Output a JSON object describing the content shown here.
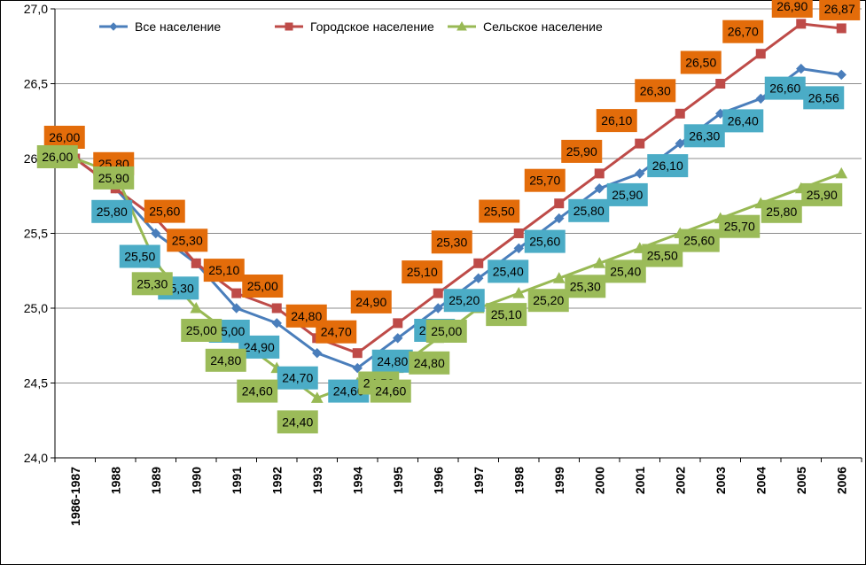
{
  "chart_data": {
    "type": "line",
    "categories": [
      "1986-1987",
      "1988",
      "1989",
      "1990",
      "1991",
      "1992",
      "1993",
      "1994",
      "1995",
      "1996",
      "1997",
      "1998",
      "1999",
      "2000",
      "2001",
      "2002",
      "2003",
      "2004",
      "2005",
      "2006"
    ],
    "ylim": [
      24.0,
      27.0
    ],
    "yticks": [
      "24,0",
      "24,5",
      "25,0",
      "25,5",
      "26,0",
      "26,5",
      "27,0"
    ],
    "legend_position": "top",
    "grid": "horizontal",
    "series": [
      {
        "name": "Все население",
        "color": "#4a7ebb",
        "marker": "diamond",
        "label_bg": "#4bacc6",
        "values": [
          26.0,
          25.8,
          25.5,
          25.3,
          25.0,
          24.9,
          24.7,
          24.6,
          24.8,
          25.0,
          25.2,
          25.4,
          25.6,
          25.8,
          25.9,
          26.1,
          26.3,
          26.4,
          26.6,
          26.56
        ],
        "labels": [
          "",
          "25,80",
          "25,50",
          "25,30",
          "25,00",
          "24,90",
          "24,70",
          "24,60",
          "24,80",
          "25,00",
          "25,20",
          "25,40",
          "25,60",
          "25,80",
          "25,90",
          "26,10",
          "26,30",
          "26,40",
          "26,60",
          "26,56"
        ]
      },
      {
        "name": "Городское население",
        "color": "#be4b48",
        "marker": "square",
        "label_bg": "#e36c0a",
        "values": [
          26.0,
          25.8,
          25.6,
          25.3,
          25.1,
          25.0,
          24.8,
          24.7,
          24.9,
          25.1,
          25.3,
          25.5,
          25.7,
          25.9,
          26.1,
          26.3,
          26.5,
          26.7,
          26.9,
          26.87
        ],
        "labels": [
          "26,00",
          "25,80",
          "25,60",
          "25,30",
          "25,10",
          "25,00",
          "24,80",
          "24,70",
          "24,90",
          "25,10",
          "25,30",
          "25,50",
          "25,70",
          "25,90",
          "26,10",
          "26,30",
          "26,50",
          "26,70",
          "26,90",
          "26,87"
        ]
      },
      {
        "name": "Сельское население",
        "color": "#98b954",
        "marker": "triangle",
        "label_bg": "#9bbb59",
        "values": [
          26.0,
          25.9,
          25.3,
          25.0,
          24.8,
          24.6,
          24.4,
          24.5,
          24.6,
          24.8,
          25.0,
          25.1,
          25.2,
          25.3,
          25.4,
          25.5,
          25.6,
          25.7,
          25.8,
          25.9
        ],
        "labels": [
          "26,00",
          "25,90",
          "25,30",
          "25,00",
          "24,80",
          "24,60",
          "24,40",
          "24,50",
          "24,60",
          "24,80",
          "25,00",
          "25,10",
          "25,20",
          "25,30",
          "25,40",
          "25,50",
          "25,60",
          "25,70",
          "25,80",
          "25,90"
        ]
      }
    ]
  }
}
